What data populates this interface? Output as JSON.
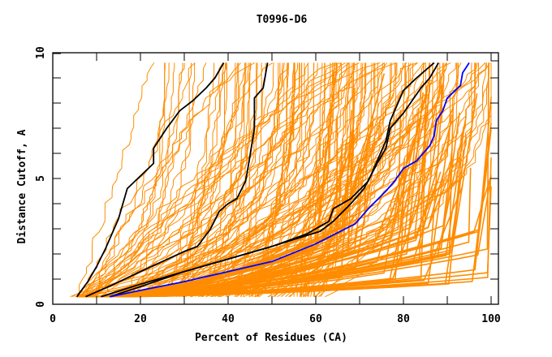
{
  "chart_data": {
    "type": "line",
    "title": "T0996-D6",
    "xlabel": "Percent of Residues (CA)",
    "ylabel": "Distance Cutoff, A",
    "xlim": [
      0,
      100
    ],
    "ylim": [
      0,
      10
    ],
    "x_ticks": [
      0,
      20,
      40,
      60,
      80,
      100
    ],
    "x_minor_ticks": [
      10,
      30,
      50,
      70,
      90
    ],
    "y_ticks": [
      0,
      5,
      10
    ],
    "y_minor_ticks": [
      1,
      2,
      3,
      4,
      6,
      7,
      8,
      9
    ],
    "grid": false,
    "legend": "none",
    "colors": {
      "background_models": "#ff8c00",
      "highlight_black": "#000000",
      "highlight_blue": "#0000ff",
      "frame": "#000000"
    },
    "background_family": {
      "description": "Many orange GDT curves for all submitted models, fanning from ~5-60% at 0.3 A up to ~17-100% at 9.6 A",
      "y_start": 0.3,
      "y_end": 9.6,
      "count": 150,
      "x_at_y_start_range": [
        5,
        62
      ],
      "x_at_y_end_range": [
        17,
        100
      ]
    },
    "series": [
      {
        "name": "model-black-1",
        "color": "#000000",
        "points": [
          [
            5.5,
            0.3
          ],
          [
            8,
            0.9
          ],
          [
            10,
            1.5
          ],
          [
            12,
            2.2
          ],
          [
            14,
            3.0
          ],
          [
            15,
            3.4
          ],
          [
            17,
            4.6
          ],
          [
            20,
            5.1
          ],
          [
            23,
            5.6
          ],
          [
            23,
            6.2
          ],
          [
            26,
            7.0
          ],
          [
            29,
            7.7
          ],
          [
            32,
            8.1
          ],
          [
            35,
            8.6
          ],
          [
            37,
            9.0
          ],
          [
            39,
            9.6
          ]
        ]
      },
      {
        "name": "model-black-2",
        "color": "#000000",
        "points": [
          [
            7.5,
            0.3
          ],
          [
            14,
            0.8
          ],
          [
            20,
            1.3
          ],
          [
            25,
            1.7
          ],
          [
            30,
            2.1
          ],
          [
            33,
            2.3
          ],
          [
            36,
            3.0
          ],
          [
            38,
            3.7
          ],
          [
            40,
            4.0
          ],
          [
            42,
            4.2
          ],
          [
            44,
            4.9
          ],
          [
            45,
            5.9
          ],
          [
            46,
            7.0
          ],
          [
            46,
            8.2
          ],
          [
            48,
            8.6
          ],
          [
            49,
            9.6
          ]
        ]
      },
      {
        "name": "model-black-3",
        "color": "#000000",
        "points": [
          [
            13,
            0.3
          ],
          [
            20,
            0.7
          ],
          [
            30,
            1.3
          ],
          [
            40,
            1.8
          ],
          [
            50,
            2.3
          ],
          [
            58,
            2.8
          ],
          [
            63,
            3.3
          ],
          [
            64,
            3.8
          ],
          [
            68,
            4.2
          ],
          [
            72,
            4.9
          ],
          [
            74,
            5.7
          ],
          [
            76,
            6.5
          ],
          [
            77,
            7.3
          ],
          [
            80,
            8.5
          ],
          [
            83,
            9.0
          ],
          [
            87,
            9.6
          ]
        ]
      },
      {
        "name": "model-black-4",
        "color": "#000000",
        "points": [
          [
            11,
            0.3
          ],
          [
            20,
            0.8
          ],
          [
            30,
            1.3
          ],
          [
            40,
            1.8
          ],
          [
            50,
            2.3
          ],
          [
            61,
            2.9
          ],
          [
            64,
            3.3
          ],
          [
            68,
            4.0
          ],
          [
            71,
            4.6
          ],
          [
            74,
            5.6
          ],
          [
            76,
            6.2
          ],
          [
            77,
            7.0
          ],
          [
            80,
            7.6
          ],
          [
            84,
            8.6
          ],
          [
            86,
            9.0
          ],
          [
            88,
            9.6
          ]
        ]
      },
      {
        "name": "model-blue-best",
        "color": "#0000ff",
        "points": [
          [
            13,
            0.3
          ],
          [
            20,
            0.55
          ],
          [
            30,
            0.9
          ],
          [
            40,
            1.3
          ],
          [
            50,
            1.7
          ],
          [
            60,
            2.4
          ],
          [
            69,
            3.2
          ],
          [
            72,
            3.8
          ],
          [
            76,
            4.5
          ],
          [
            78,
            4.9
          ],
          [
            80,
            5.4
          ],
          [
            83,
            5.7
          ],
          [
            86,
            6.3
          ],
          [
            87,
            6.7
          ],
          [
            87.5,
            7.3
          ],
          [
            89,
            7.7
          ],
          [
            90,
            8.2
          ],
          [
            93,
            8.7
          ],
          [
            93.5,
            9.2
          ],
          [
            95,
            9.6
          ]
        ]
      }
    ]
  }
}
